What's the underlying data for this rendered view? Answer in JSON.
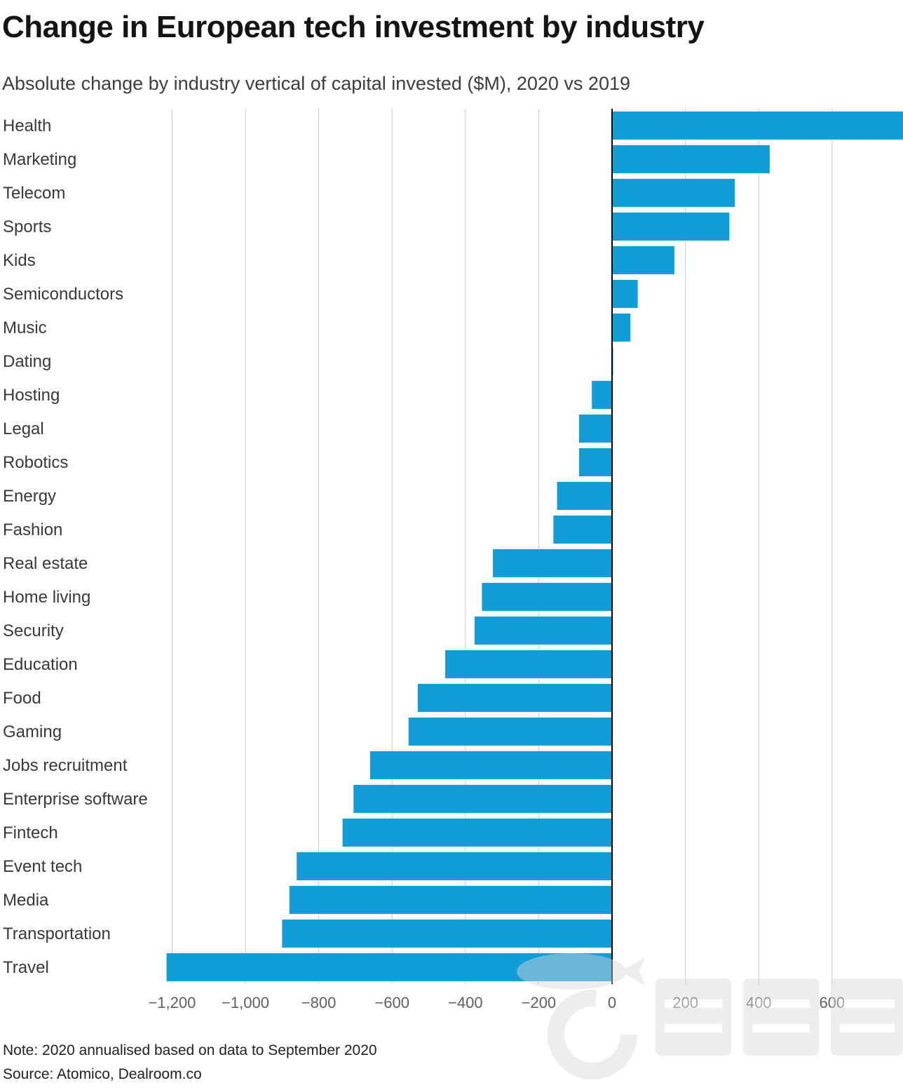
{
  "header": {
    "title": "Change in European tech investment by industry",
    "subtitle": "Absolute change by industry vertical of capital invested ($M), 2020 vs 2019"
  },
  "chart_data": {
    "type": "bar",
    "orientation": "horizontal",
    "title": "Change in European tech investment by industry",
    "subtitle": "Absolute change by industry vertical of capital invested ($M), 2020 vs 2019",
    "xlabel": "",
    "ylabel": "",
    "categories": [
      "Health",
      "Marketing",
      "Telecom",
      "Sports",
      "Kids",
      "Semiconductors",
      "Music",
      "Dating",
      "Hosting",
      "Legal",
      "Robotics",
      "Energy",
      "Fashion",
      "Real estate",
      "Home living",
      "Security",
      "Education",
      "Food",
      "Gaming",
      "Jobs recruitment",
      "Enterprise software",
      "Fintech",
      "Event tech",
      "Media",
      "Transportation",
      "Travel"
    ],
    "values": [
      795,
      430,
      335,
      320,
      170,
      70,
      50,
      3,
      -55,
      -90,
      -90,
      -150,
      -160,
      -325,
      -355,
      -375,
      -455,
      -530,
      -555,
      -660,
      -705,
      -735,
      -860,
      -880,
      -900,
      -1215
    ],
    "xlim": [
      -1240,
      795
    ],
    "x_ticks": [
      -1200,
      -1000,
      -800,
      -600,
      -400,
      -200,
      0,
      200,
      400,
      600
    ],
    "x_tick_labels": [
      "−1,200",
      "−1,000",
      "−800",
      "−600",
      "−400",
      "−200",
      "0",
      "200",
      "400",
      "600"
    ],
    "grid": "vertical",
    "legend": "none",
    "bar_color": "#129dd9",
    "grid_color": "#c9c9c9",
    "zero_line_color": "#000000",
    "label_color": "#383838",
    "tick_color": "#5f5f5f"
  },
  "footer": {
    "note": "Note: 2020 annualised based on data to September 2020",
    "source": "Source: Atomico, Dealroom.co"
  }
}
